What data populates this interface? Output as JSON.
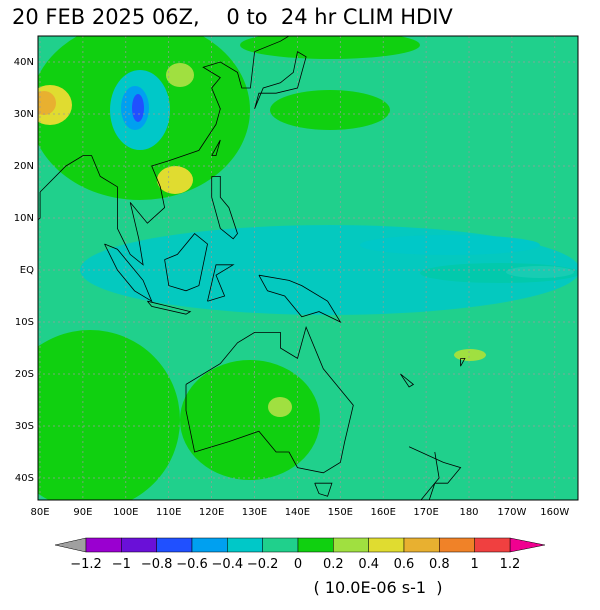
{
  "title": "20 FEB 2025 06Z,    0 to  24 hr CLIM HDIV",
  "lat_labels": [
    "40N",
    "30N",
    "20N",
    "10N",
    "EQ",
    "10S",
    "20S",
    "30S",
    "40S"
  ],
  "lon_labels": [
    "80E",
    "90E",
    "100E",
    "110E",
    "120E",
    "130E",
    "140E",
    "150E",
    "160E",
    "170E",
    "180",
    "170W",
    "160W"
  ],
  "colorbar": {
    "ticks": [
      {
        "value": -1.2,
        "label": "−1.2"
      },
      {
        "value": -1,
        "label": "−1"
      },
      {
        "value": -0.8,
        "label": "−0.8"
      },
      {
        "value": -0.6,
        "label": "−0.6"
      },
      {
        "value": -0.4,
        "label": "−0.4"
      },
      {
        "value": -0.2,
        "label": "−0.2"
      },
      0,
      0.2,
      0.4,
      0.6,
      0.8,
      1,
      1.2
    ],
    "colors": [
      "#9a00d0",
      "#6a10d8",
      "#2050ff",
      "#00a0f0",
      "#00c8c8",
      "#20d08c",
      "#10d010",
      "#a0e040",
      "#e0dc30",
      "#e8b030",
      "#f08228",
      "#f04040"
    ],
    "under_color": "#a0a0a0",
    "over_color": "#f00090",
    "units": "( 10.0E-06 s-1  )"
  }
}
